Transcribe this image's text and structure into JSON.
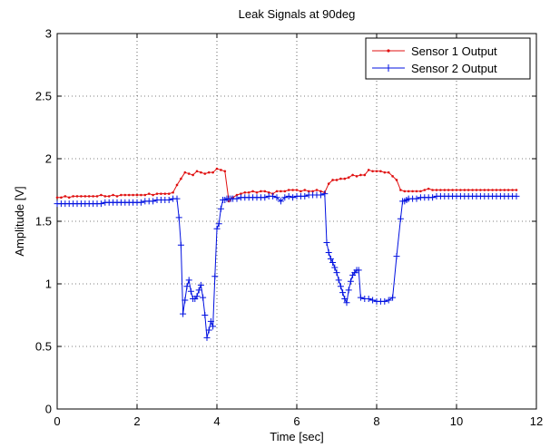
{
  "chart_data": {
    "type": "line",
    "title": "Leak Signals at 90deg",
    "xlabel": "Time [sec]",
    "ylabel": "Amplitude [V]",
    "xlim": [
      0,
      12
    ],
    "ylim": [
      0,
      3
    ],
    "xticks": [
      0,
      2,
      4,
      6,
      8,
      10,
      12
    ],
    "xtick_labels": [
      "0",
      "2",
      "4",
      "6",
      "8",
      "10",
      "12"
    ],
    "yticks": [
      0,
      0.5,
      1,
      1.5,
      2,
      2.5,
      3
    ],
    "ytick_labels": [
      "0",
      "0.5",
      "1",
      "1.5",
      "2",
      "2.5",
      "3"
    ],
    "grid": true,
    "grid_style": "dotted",
    "legend_position": "top-right",
    "series": [
      {
        "name": "Sensor 1 Output",
        "color": "#e01010",
        "marker": "dot",
        "x": [
          0,
          0.1,
          0.2,
          0.3,
          0.4,
          0.5,
          0.6,
          0.7,
          0.8,
          0.9,
          1.0,
          1.1,
          1.2,
          1.3,
          1.4,
          1.5,
          1.6,
          1.7,
          1.8,
          1.9,
          2.0,
          2.1,
          2.2,
          2.3,
          2.4,
          2.5,
          2.6,
          2.7,
          2.8,
          2.9,
          3.0,
          3.1,
          3.2,
          3.3,
          3.4,
          3.5,
          3.6,
          3.7,
          3.8,
          3.9,
          4.0,
          4.1,
          4.2,
          4.3,
          4.4,
          4.5,
          4.6,
          4.7,
          4.8,
          4.9,
          5.0,
          5.1,
          5.2,
          5.3,
          5.4,
          5.5,
          5.6,
          5.7,
          5.8,
          5.9,
          6.0,
          6.1,
          6.2,
          6.3,
          6.4,
          6.5,
          6.6,
          6.7,
          6.8,
          6.9,
          7.0,
          7.1,
          7.2,
          7.3,
          7.4,
          7.5,
          7.6,
          7.7,
          7.8,
          7.9,
          8.0,
          8.1,
          8.2,
          8.3,
          8.4,
          8.5,
          8.6,
          8.7,
          8.8,
          8.9,
          9.0,
          9.1,
          9.2,
          9.3,
          9.4,
          9.5,
          9.6,
          9.7,
          9.8,
          9.9,
          10.0,
          10.1,
          10.2,
          10.3,
          10.4,
          10.5,
          10.6,
          10.7,
          10.8,
          10.9,
          11.0,
          11.1,
          11.2,
          11.3,
          11.4,
          11.5
        ],
        "y": [
          1.69,
          1.69,
          1.7,
          1.69,
          1.7,
          1.7,
          1.7,
          1.7,
          1.7,
          1.7,
          1.7,
          1.71,
          1.7,
          1.7,
          1.71,
          1.7,
          1.71,
          1.71,
          1.71,
          1.71,
          1.71,
          1.71,
          1.71,
          1.72,
          1.71,
          1.72,
          1.72,
          1.72,
          1.72,
          1.73,
          1.79,
          1.84,
          1.89,
          1.88,
          1.87,
          1.9,
          1.89,
          1.88,
          1.89,
          1.89,
          1.92,
          1.91,
          1.9,
          1.66,
          1.69,
          1.71,
          1.72,
          1.73,
          1.73,
          1.74,
          1.73,
          1.74,
          1.74,
          1.73,
          1.72,
          1.74,
          1.74,
          1.74,
          1.75,
          1.75,
          1.75,
          1.74,
          1.75,
          1.74,
          1.74,
          1.75,
          1.74,
          1.73,
          1.8,
          1.83,
          1.83,
          1.84,
          1.84,
          1.85,
          1.87,
          1.86,
          1.87,
          1.87,
          1.91,
          1.9,
          1.9,
          1.9,
          1.89,
          1.89,
          1.86,
          1.83,
          1.75,
          1.74,
          1.74,
          1.74,
          1.74,
          1.74,
          1.75,
          1.76,
          1.75,
          1.75,
          1.75,
          1.75,
          1.75,
          1.75,
          1.75,
          1.75,
          1.75,
          1.75,
          1.75,
          1.75,
          1.75,
          1.75,
          1.75,
          1.75,
          1.75,
          1.75,
          1.75,
          1.75,
          1.75,
          1.75
        ]
      },
      {
        "name": "Sensor 2 Output",
        "color": "#0010e0",
        "marker": "plus",
        "x": [
          0,
          0.1,
          0.2,
          0.3,
          0.4,
          0.5,
          0.6,
          0.7,
          0.8,
          0.9,
          1.0,
          1.1,
          1.2,
          1.3,
          1.4,
          1.5,
          1.6,
          1.7,
          1.8,
          1.9,
          2.0,
          2.1,
          2.2,
          2.3,
          2.4,
          2.5,
          2.6,
          2.7,
          2.8,
          2.9,
          3.0,
          3.05,
          3.1,
          3.15,
          3.2,
          3.25,
          3.3,
          3.35,
          3.4,
          3.45,
          3.5,
          3.55,
          3.6,
          3.65,
          3.7,
          3.75,
          3.8,
          3.85,
          3.9,
          3.95,
          4.0,
          4.05,
          4.1,
          4.15,
          4.2,
          4.25,
          4.3,
          4.35,
          4.4,
          4.5,
          4.6,
          4.7,
          4.8,
          4.9,
          5.0,
          5.1,
          5.2,
          5.3,
          5.4,
          5.5,
          5.6,
          5.7,
          5.8,
          5.9,
          6.0,
          6.1,
          6.2,
          6.3,
          6.4,
          6.5,
          6.6,
          6.7,
          6.75,
          6.8,
          6.85,
          6.9,
          6.95,
          7.0,
          7.05,
          7.1,
          7.15,
          7.2,
          7.25,
          7.3,
          7.35,
          7.4,
          7.45,
          7.5,
          7.55,
          7.6,
          7.7,
          7.8,
          7.9,
          8.0,
          8.1,
          8.2,
          8.3,
          8.4,
          8.5,
          8.6,
          8.65,
          8.7,
          8.75,
          8.8,
          8.9,
          9.0,
          9.1,
          9.2,
          9.3,
          9.4,
          9.5,
          9.6,
          9.7,
          9.8,
          9.9,
          10.0,
          10.1,
          10.2,
          10.3,
          10.4,
          10.5,
          10.6,
          10.7,
          10.8,
          10.9,
          11.0,
          11.1,
          11.2,
          11.3,
          11.4,
          11.5
        ],
        "y": [
          1.64,
          1.64,
          1.64,
          1.64,
          1.64,
          1.64,
          1.64,
          1.64,
          1.64,
          1.64,
          1.64,
          1.64,
          1.65,
          1.65,
          1.65,
          1.65,
          1.65,
          1.65,
          1.65,
          1.65,
          1.65,
          1.65,
          1.66,
          1.66,
          1.66,
          1.67,
          1.67,
          1.67,
          1.67,
          1.68,
          1.68,
          1.53,
          1.31,
          0.76,
          0.87,
          0.98,
          1.03,
          0.94,
          0.88,
          0.88,
          0.9,
          0.95,
          0.99,
          0.89,
          0.75,
          0.57,
          0.63,
          0.7,
          0.66,
          1.06,
          1.44,
          1.48,
          1.6,
          1.67,
          1.67,
          1.68,
          1.68,
          1.68,
          1.68,
          1.68,
          1.69,
          1.69,
          1.69,
          1.69,
          1.69,
          1.69,
          1.69,
          1.7,
          1.7,
          1.69,
          1.66,
          1.69,
          1.7,
          1.69,
          1.7,
          1.7,
          1.7,
          1.71,
          1.71,
          1.71,
          1.71,
          1.72,
          1.33,
          1.25,
          1.2,
          1.17,
          1.13,
          1.09,
          1.03,
          0.98,
          0.93,
          0.88,
          0.85,
          0.95,
          1.02,
          1.07,
          1.09,
          1.11,
          1.11,
          0.89,
          0.88,
          0.88,
          0.87,
          0.86,
          0.86,
          0.86,
          0.87,
          0.89,
          1.22,
          1.52,
          1.66,
          1.66,
          1.67,
          1.68,
          1.68,
          1.68,
          1.69,
          1.69,
          1.69,
          1.69,
          1.7,
          1.7,
          1.7,
          1.7,
          1.7,
          1.7,
          1.7,
          1.7,
          1.7,
          1.7,
          1.7,
          1.7,
          1.7,
          1.7,
          1.7,
          1.7,
          1.7,
          1.7,
          1.7,
          1.7,
          1.7
        ]
      }
    ]
  }
}
